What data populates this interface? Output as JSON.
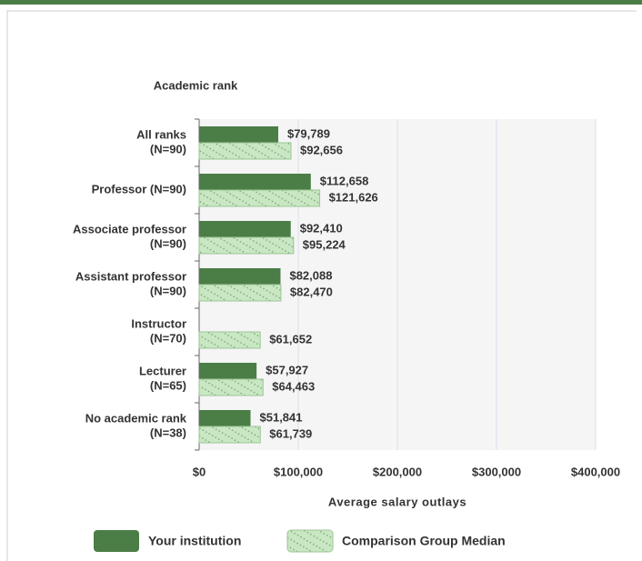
{
  "chart_data": {
    "type": "bar",
    "orientation": "horizontal",
    "y_axis_title": "Academic rank",
    "x_axis_title": "Average salary outlays",
    "categories": [
      [
        "All ranks",
        "(N=90)"
      ],
      [
        "Professor (N=90)"
      ],
      [
        "Associate professor",
        "(N=90)"
      ],
      [
        "Assistant professor",
        "(N=90)"
      ],
      [
        "Instructor",
        "(N=70)"
      ],
      [
        "Lecturer",
        "(N=65)"
      ],
      [
        "No academic rank",
        "(N=38)"
      ]
    ],
    "series": [
      {
        "name": "Your institution",
        "color": "#4b7d47",
        "values": [
          79789,
          112658,
          92410,
          82088,
          null,
          57927,
          51841
        ],
        "value_labels": [
          "$79,789",
          "$112,658",
          "$92,410",
          "$82,088",
          null,
          "$57,927",
          "$51,841"
        ]
      },
      {
        "name": "Comparison Group Median",
        "color": "#c9e7c3",
        "values": [
          92656,
          121626,
          95224,
          82470,
          61652,
          64463,
          61739
        ],
        "value_labels": [
          "$92,656",
          "$121,626",
          "$95,224",
          "$82,470",
          "$61,652",
          "$64,463",
          "$61,739"
        ]
      }
    ],
    "xlim": [
      0,
      400000
    ],
    "xticks": [
      {
        "value": 0,
        "label": "$0"
      },
      {
        "value": 100000,
        "label": "$100,000"
      },
      {
        "value": 200000,
        "label": "$200,000"
      },
      {
        "value": 300000,
        "label": "$300,000"
      },
      {
        "value": 400000,
        "label": "$400,000"
      }
    ],
    "grid": true
  }
}
